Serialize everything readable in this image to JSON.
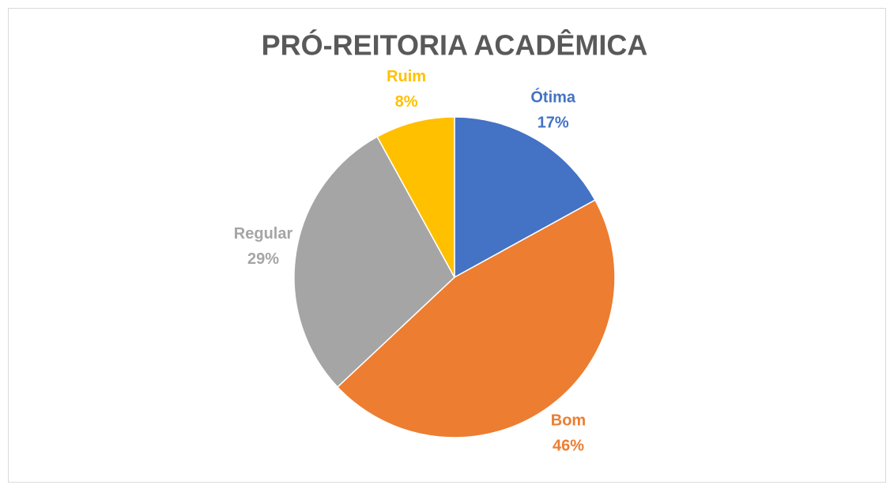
{
  "chart_data": {
    "type": "pie",
    "title": "PRÓ-REITORIA ACADÊMICA",
    "categories": [
      "Ótima",
      "Bom",
      "Regular",
      "Ruim"
    ],
    "values": [
      17,
      46,
      29,
      8
    ],
    "value_labels": [
      "17%",
      "46%",
      "29%",
      "8%"
    ],
    "colors": [
      "#4472c4",
      "#ed7d31",
      "#a5a5a5",
      "#ffc000"
    ]
  }
}
